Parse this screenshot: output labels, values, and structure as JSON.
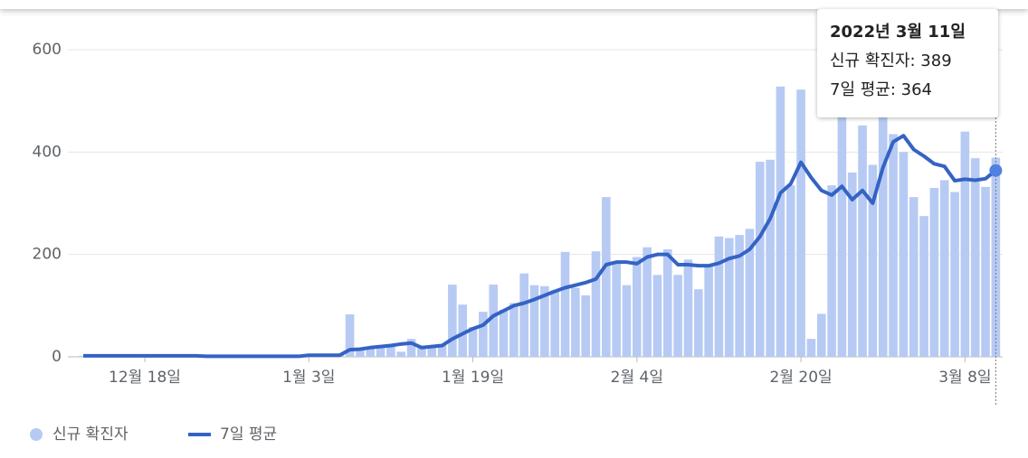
{
  "chart_data": {
    "type": "bar-line",
    "categories": [
      null,
      null,
      null,
      null,
      null,
      null,
      "12월 18일",
      null,
      null,
      null,
      null,
      null,
      null,
      null,
      null,
      null,
      null,
      null,
      null,
      null,
      null,
      null,
      "1월 3일",
      null,
      null,
      null,
      null,
      null,
      null,
      null,
      null,
      null,
      null,
      null,
      null,
      null,
      null,
      null,
      "1월 19일",
      null,
      null,
      null,
      null,
      null,
      null,
      null,
      null,
      null,
      null,
      null,
      null,
      null,
      null,
      null,
      "2월 4일",
      null,
      null,
      null,
      null,
      null,
      null,
      null,
      null,
      null,
      null,
      null,
      null,
      null,
      null,
      null,
      "2월 20일",
      null,
      null,
      null,
      null,
      null,
      null,
      null,
      null,
      null,
      null,
      null,
      null,
      null,
      null,
      null,
      "3월 8일",
      null,
      null,
      null
    ],
    "series": [
      {
        "name": "신규 확진자",
        "color": "#b6caf3",
        "values": [
          2,
          3,
          2,
          1,
          2,
          3,
          2,
          2,
          1,
          2,
          2,
          3,
          1,
          2,
          2,
          1,
          2,
          3,
          2,
          2,
          1,
          2,
          3,
          4,
          2,
          3,
          83,
          15,
          20,
          22,
          25,
          10,
          35,
          22,
          20,
          25,
          141,
          102,
          58,
          88,
          141,
          92,
          105,
          163,
          140,
          138,
          130,
          205,
          135,
          120,
          206,
          312,
          185,
          140,
          195,
          214,
          160,
          210,
          160,
          190,
          132,
          180,
          235,
          232,
          238,
          250,
          381,
          385,
          528,
          335,
          522,
          35,
          84,
          335,
          480,
          360,
          452,
          375,
          470,
          435,
          400,
          312,
          275,
          330,
          345,
          322,
          440,
          388,
          332,
          389
        ]
      },
      {
        "name": "7일 평균",
        "color": "#3563c4",
        "values": [
          2,
          2,
          2,
          2,
          2,
          2,
          2,
          2,
          2,
          2,
          2,
          2,
          1,
          1,
          1,
          1,
          1,
          1,
          1,
          1,
          1,
          1,
          3,
          3,
          3,
          3,
          14,
          15,
          18,
          20,
          22,
          25,
          27,
          18,
          20,
          22,
          35,
          45,
          55,
          62,
          80,
          90,
          100,
          105,
          112,
          120,
          128,
          135,
          140,
          145,
          152,
          180,
          185,
          185,
          182,
          195,
          200,
          200,
          180,
          180,
          178,
          178,
          183,
          192,
          197,
          210,
          235,
          270,
          320,
          338,
          380,
          350,
          325,
          316,
          333,
          307,
          325,
          300,
          370,
          420,
          432,
          405,
          392,
          377,
          372,
          344,
          347,
          345,
          348,
          364
        ]
      }
    ],
    "ylim": [
      0,
      600
    ],
    "yticks": [
      0,
      200,
      400,
      600
    ],
    "grid": true,
    "tooltip": {
      "title": "2022년 3월 11일",
      "lines": [
        "신규 확진자: 389",
        "7일 평균: 364"
      ]
    }
  }
}
